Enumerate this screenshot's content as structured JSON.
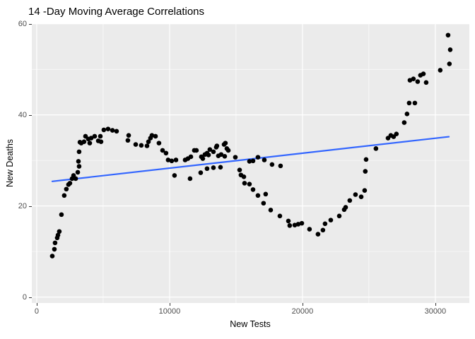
{
  "chart_data": {
    "type": "scatter",
    "title": "14 -Day Moving Average Correlations",
    "xlabel": "New Tests",
    "ylabel": "New Deaths",
    "xlim": [
      -370,
      32560
    ],
    "ylim": [
      -1.3,
      60.1
    ],
    "grid": true,
    "legend": "none",
    "x_ticks": [
      {
        "v": 0,
        "label": "0"
      },
      {
        "v": 10000,
        "label": "10000"
      },
      {
        "v": 20000,
        "label": "20000"
      },
      {
        "v": 30000,
        "label": "30000"
      }
    ],
    "x_minor": [
      5000,
      15000,
      25000
    ],
    "y_ticks": [
      {
        "v": 0,
        "label": "0"
      },
      {
        "v": 20,
        "label": "20"
      },
      {
        "v": 40,
        "label": "40"
      },
      {
        "v": 60,
        "label": "60"
      }
    ],
    "y_minor": [
      10,
      30,
      50
    ],
    "colors": {
      "background": "#FFFFFF",
      "panel": "#EBEBEB",
      "grid": "#FFFFFF",
      "point": "#000000",
      "smooth_line": "#3366FF",
      "tick_text": "#4D4D4D",
      "axis_title": "#000000",
      "tick_mark": "#333333"
    },
    "trend_line": {
      "x": [
        1170,
        31020
      ],
      "y": [
        25.4,
        35.2
      ]
    },
    "points": [
      [
        1170,
        9.0
      ],
      [
        1330,
        10.5
      ],
      [
        1380,
        11.9
      ],
      [
        1540,
        13.0
      ],
      [
        1600,
        13.6
      ],
      [
        1700,
        14.4
      ],
      [
        1860,
        18.1
      ],
      [
        2070,
        22.3
      ],
      [
        2230,
        23.7
      ],
      [
        2390,
        24.7
      ],
      [
        2500,
        25.0
      ],
      [
        2660,
        26.0
      ],
      [
        2770,
        26.7
      ],
      [
        2930,
        26.0
      ],
      [
        3090,
        27.4
      ],
      [
        3140,
        29.8
      ],
      [
        3190,
        28.7
      ],
      [
        3190,
        31.9
      ],
      [
        3250,
        34.0
      ],
      [
        3350,
        33.8
      ],
      [
        3560,
        34.1
      ],
      [
        3670,
        35.3
      ],
      [
        3880,
        34.7
      ],
      [
        3990,
        33.8
      ],
      [
        4100,
        34.9
      ],
      [
        4360,
        35.3
      ],
      [
        4630,
        34.3
      ],
      [
        4790,
        35.3
      ],
      [
        4840,
        34.1
      ],
      [
        5050,
        36.7
      ],
      [
        5370,
        36.9
      ],
      [
        5700,
        36.6
      ],
      [
        6010,
        36.4
      ],
      [
        6860,
        34.4
      ],
      [
        6920,
        35.5
      ],
      [
        7450,
        33.5
      ],
      [
        7870,
        33.3
      ],
      [
        8300,
        33.2
      ],
      [
        8410,
        34.1
      ],
      [
        8560,
        34.9
      ],
      [
        8670,
        35.5
      ],
      [
        8940,
        35.3
      ],
      [
        9200,
        33.8
      ],
      [
        9470,
        32.2
      ],
      [
        9730,
        31.6
      ],
      [
        9890,
        30.1
      ],
      [
        10160,
        29.9
      ],
      [
        10370,
        26.7
      ],
      [
        10480,
        30.1
      ],
      [
        11170,
        30.1
      ],
      [
        11380,
        30.4
      ],
      [
        11540,
        26.0
      ],
      [
        11600,
        30.8
      ],
      [
        11860,
        32.2
      ],
      [
        12020,
        32.2
      ],
      [
        12340,
        27.3
      ],
      [
        12390,
        30.8
      ],
      [
        12500,
        30.4
      ],
      [
        12660,
        31.3
      ],
      [
        12820,
        28.2
      ],
      [
        12820,
        31.6
      ],
      [
        12930,
        31.2
      ],
      [
        13030,
        32.4
      ],
      [
        13300,
        28.4
      ],
      [
        13300,
        31.9
      ],
      [
        13510,
        32.9
      ],
      [
        13560,
        33.2
      ],
      [
        13670,
        31.0
      ],
      [
        13830,
        28.5
      ],
      [
        13880,
        31.3
      ],
      [
        14100,
        33.5
      ],
      [
        14150,
        30.9
      ],
      [
        14200,
        33.8
      ],
      [
        14310,
        32.6
      ],
      [
        14420,
        32.2
      ],
      [
        14950,
        30.7
      ],
      [
        15270,
        27.9
      ],
      [
        15370,
        26.8
      ],
      [
        15590,
        26.4
      ],
      [
        15640,
        25.0
      ],
      [
        16010,
        24.8
      ],
      [
        16010,
        29.8
      ],
      [
        16280,
        23.6
      ],
      [
        16280,
        29.9
      ],
      [
        16650,
        22.3
      ],
      [
        16650,
        30.7
      ],
      [
        17070,
        20.6
      ],
      [
        17130,
        30.1
      ],
      [
        17230,
        22.6
      ],
      [
        17610,
        19.1
      ],
      [
        17710,
        29.1
      ],
      [
        18300,
        17.8
      ],
      [
        18350,
        28.8
      ],
      [
        18940,
        16.7
      ],
      [
        19040,
        15.7
      ],
      [
        19420,
        15.8
      ],
      [
        19680,
        16.0
      ],
      [
        19950,
        16.2
      ],
      [
        20530,
        14.9
      ],
      [
        21170,
        13.8
      ],
      [
        21540,
        14.7
      ],
      [
        21700,
        16.1
      ],
      [
        22130,
        16.9
      ],
      [
        22770,
        17.8
      ],
      [
        23140,
        19.2
      ],
      [
        23250,
        19.7
      ],
      [
        23560,
        21.2
      ],
      [
        23990,
        22.5
      ],
      [
        24420,
        22.0
      ],
      [
        24680,
        23.4
      ],
      [
        24730,
        27.6
      ],
      [
        24790,
        30.2
      ],
      [
        25530,
        32.6
      ],
      [
        26440,
        34.9
      ],
      [
        26650,
        35.5
      ],
      [
        26860,
        35.2
      ],
      [
        27070,
        35.8
      ],
      [
        27660,
        38.3
      ],
      [
        27870,
        40.2
      ],
      [
        28030,
        42.6
      ],
      [
        28090,
        47.6
      ],
      [
        28350,
        47.9
      ],
      [
        28460,
        42.6
      ],
      [
        28670,
        47.3
      ],
      [
        28880,
        48.7
      ],
      [
        29100,
        49.0
      ],
      [
        29310,
        47.1
      ],
      [
        30370,
        49.8
      ],
      [
        30960,
        57.5
      ],
      [
        31060,
        51.2
      ],
      [
        31120,
        54.3
      ]
    ]
  }
}
